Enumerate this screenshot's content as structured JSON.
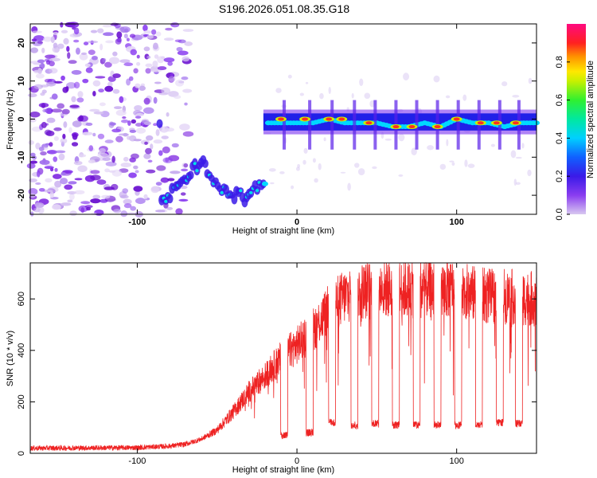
{
  "title": "S196.2026.051.08.35.G18",
  "chart_data": [
    {
      "type": "heatmap",
      "xlabel": "Height of straight line (km)",
      "ylabel": "Frequency (Hz)",
      "xlim": [
        -167,
        150
      ],
      "ylim": [
        -25,
        25
      ],
      "x_ticks": [
        -100,
        0,
        100
      ],
      "y_ticks": [
        -20,
        -10,
        0,
        10,
        20
      ],
      "colorbar": {
        "label": "Normalized spectral amplitude",
        "range": [
          0,
          1
        ],
        "ticks": [
          0.0,
          0.2,
          0.4,
          0.6,
          0.8
        ]
      },
      "trace": [
        [
          -85,
          -22
        ],
        [
          -80,
          -20
        ],
        [
          -75,
          -18
        ],
        [
          -70,
          -16
        ],
        [
          -65,
          -13
        ],
        [
          -60,
          -11
        ],
        [
          -55,
          -15
        ],
        [
          -50,
          -17
        ],
        [
          -45,
          -19
        ],
        [
          -40,
          -20
        ],
        [
          -35,
          -20
        ],
        [
          -30,
          -21
        ],
        [
          -25,
          -18
        ],
        [
          -22,
          -17
        ],
        [
          -20,
          -1
        ],
        [
          -10,
          -1
        ],
        [
          0,
          -1
        ],
        [
          10,
          -1
        ],
        [
          20,
          0
        ],
        [
          30,
          -1
        ],
        [
          40,
          -1
        ],
        [
          50,
          -1
        ],
        [
          60,
          -2
        ],
        [
          70,
          -2
        ],
        [
          80,
          -1
        ],
        [
          90,
          -2
        ],
        [
          100,
          0
        ],
        [
          110,
          -1
        ],
        [
          120,
          -1
        ],
        [
          130,
          -2
        ],
        [
          140,
          -1
        ],
        [
          150,
          -1
        ]
      ],
      "grid": false
    },
    {
      "type": "line",
      "xlabel": "Height of straight line (km)",
      "ylabel": "SNR (10 * v/v)",
      "xlim": [
        -167,
        150
      ],
      "ylim": [
        0,
        740
      ],
      "x_ticks": [
        -100,
        0,
        100
      ],
      "y_ticks": [
        0,
        200,
        400,
        600
      ],
      "color": "#ee2222",
      "envelope": [
        [
          -167,
          20
        ],
        [
          -100,
          22
        ],
        [
          -80,
          28
        ],
        [
          -70,
          35
        ],
        [
          -60,
          55
        ],
        [
          -50,
          90
        ],
        [
          -40,
          160
        ],
        [
          -30,
          240
        ],
        [
          -20,
          300
        ],
        [
          -10,
          370
        ],
        [
          0,
          420
        ],
        [
          10,
          480
        ],
        [
          20,
          560
        ],
        [
          30,
          610
        ],
        [
          40,
          630
        ],
        [
          50,
          640
        ],
        [
          60,
          640
        ],
        [
          70,
          635
        ],
        [
          80,
          640
        ],
        [
          90,
          635
        ],
        [
          100,
          640
        ],
        [
          110,
          620
        ],
        [
          120,
          610
        ],
        [
          130,
          610
        ],
        [
          140,
          605
        ],
        [
          150,
          600
        ]
      ],
      "dips": [
        [
          -8,
          70
        ],
        [
          8,
          80
        ],
        [
          22,
          120
        ],
        [
          36,
          110
        ],
        [
          49,
          115
        ],
        [
          62,
          110
        ],
        [
          75,
          110
        ],
        [
          88,
          110
        ],
        [
          101,
          110
        ],
        [
          114,
          110
        ],
        [
          127,
          120
        ],
        [
          139,
          115
        ]
      ],
      "grid": false
    }
  ]
}
